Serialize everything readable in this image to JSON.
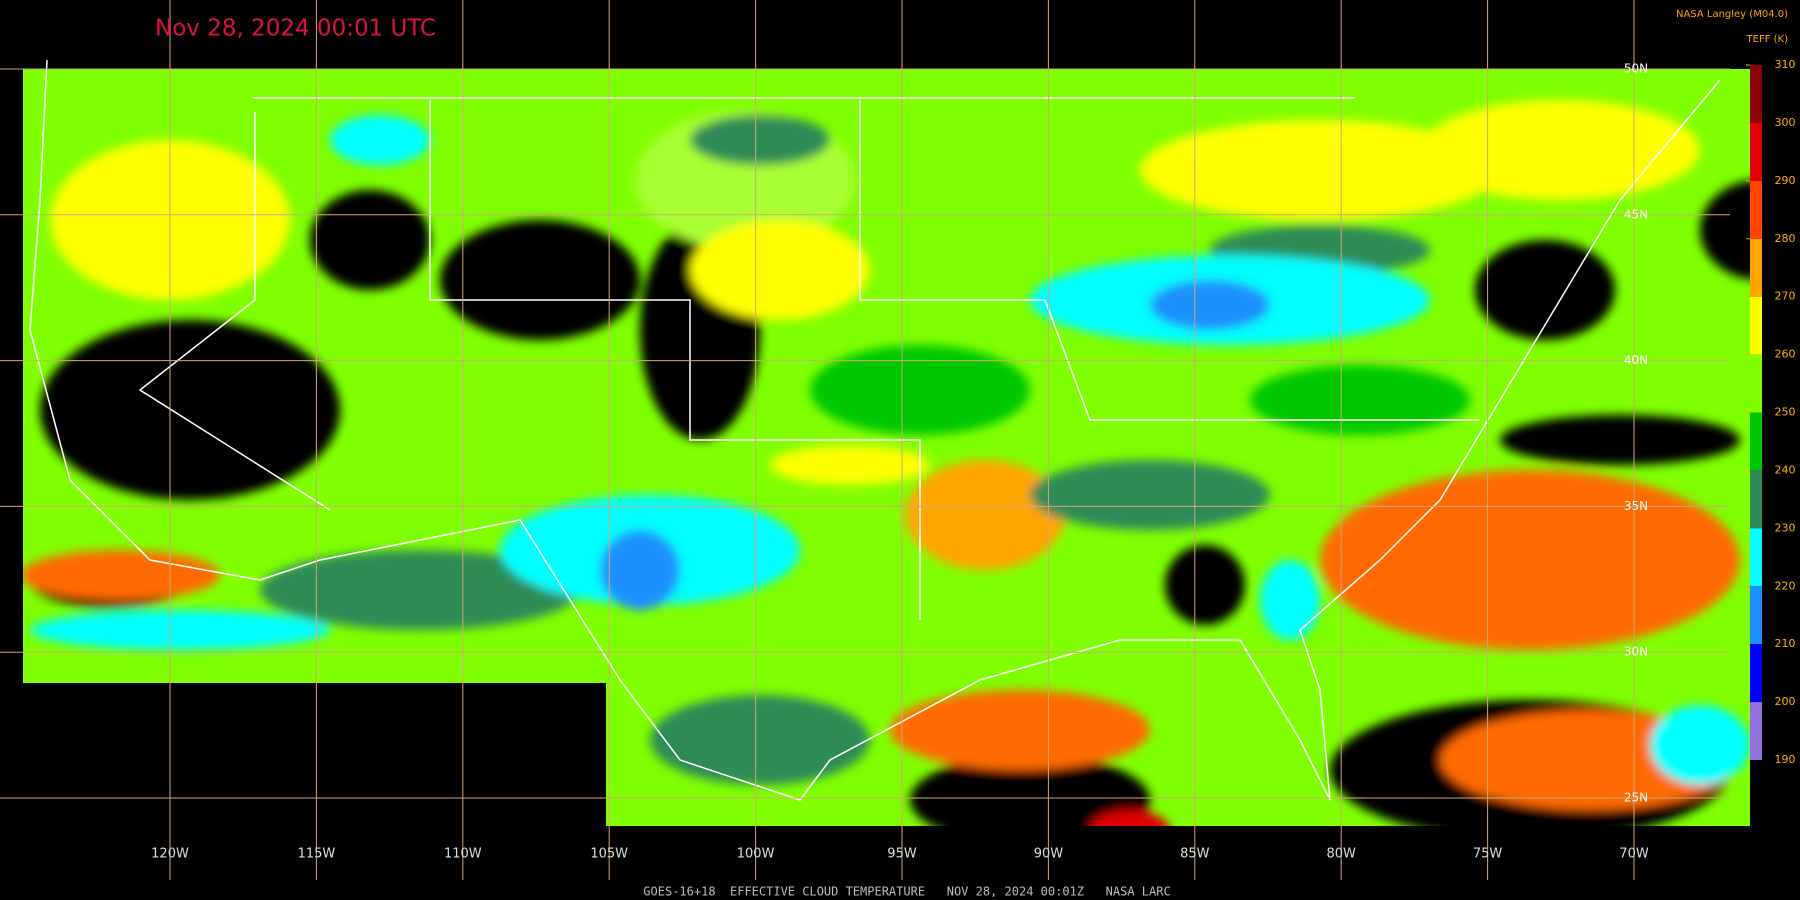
{
  "header": {
    "title": "Nov 28, 2024 00:01 UTC",
    "credit": "NASA Langley (M04.0)"
  },
  "colorbar": {
    "label": "TEFF (K)",
    "ticks": [
      310,
      300,
      290,
      280,
      270,
      260,
      250,
      240,
      230,
      220,
      210,
      200,
      190
    ],
    "colors": [
      "#8b0000",
      "#e00000",
      "#ff4500",
      "#ffa500",
      "#ffff00",
      "#7fff00",
      "#00c800",
      "#2e8b57",
      "#00ffff",
      "#1e90ff",
      "#0000ff",
      "#9370db"
    ]
  },
  "grid": {
    "longitudes": [
      "120W",
      "115W",
      "110W",
      "105W",
      "100W",
      "95W",
      "90W",
      "85W",
      "80W",
      "75W",
      "70W"
    ],
    "latitudes": [
      "50N",
      "45N",
      "40N",
      "35N",
      "30N",
      "25N"
    ]
  },
  "footer": "GOES-16+18  EFFECTIVE CLOUD TEMPERATURE   NOV 28, 2024 00:01Z   NASA LARC"
}
